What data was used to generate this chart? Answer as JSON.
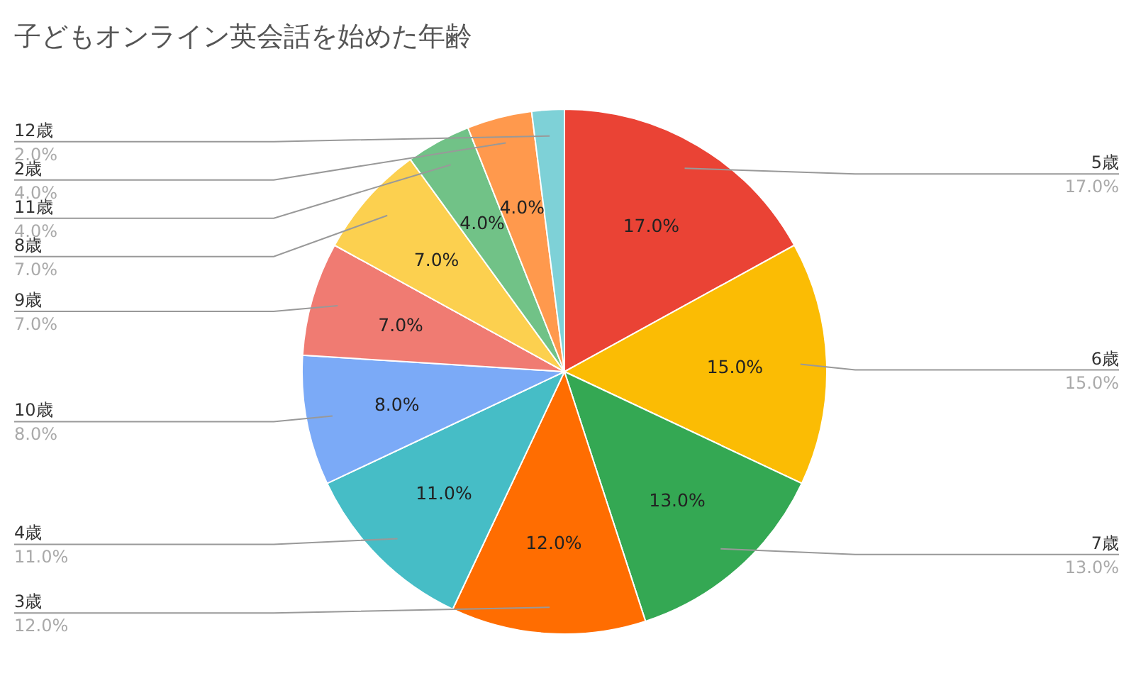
{
  "chart_data": {
    "type": "pie",
    "title": "子どもオンライン英会話を始めた年齢",
    "categories": [
      "5歳",
      "6歳",
      "7歳",
      "3歳",
      "4歳",
      "10歳",
      "9歳",
      "8歳",
      "11歳",
      "2歳",
      "12歳"
    ],
    "values": [
      17,
      15,
      13,
      12,
      11,
      8,
      7,
      7,
      4,
      4,
      2
    ],
    "value_labels": [
      "17.0%",
      "15.0%",
      "13.0%",
      "12.0%",
      "11.0%",
      "8.0%",
      "7.0%",
      "7.0%",
      "4.0%",
      "4.0%",
      "2.0%"
    ],
    "colors": [
      "#ea4335",
      "#fbbc04",
      "#34a853",
      "#ff6d01",
      "#46bdc6",
      "#7baaf7",
      "#f07b72",
      "#fcd04f",
      "#71c287",
      "#ff994d",
      "#7ed1d7"
    ]
  }
}
